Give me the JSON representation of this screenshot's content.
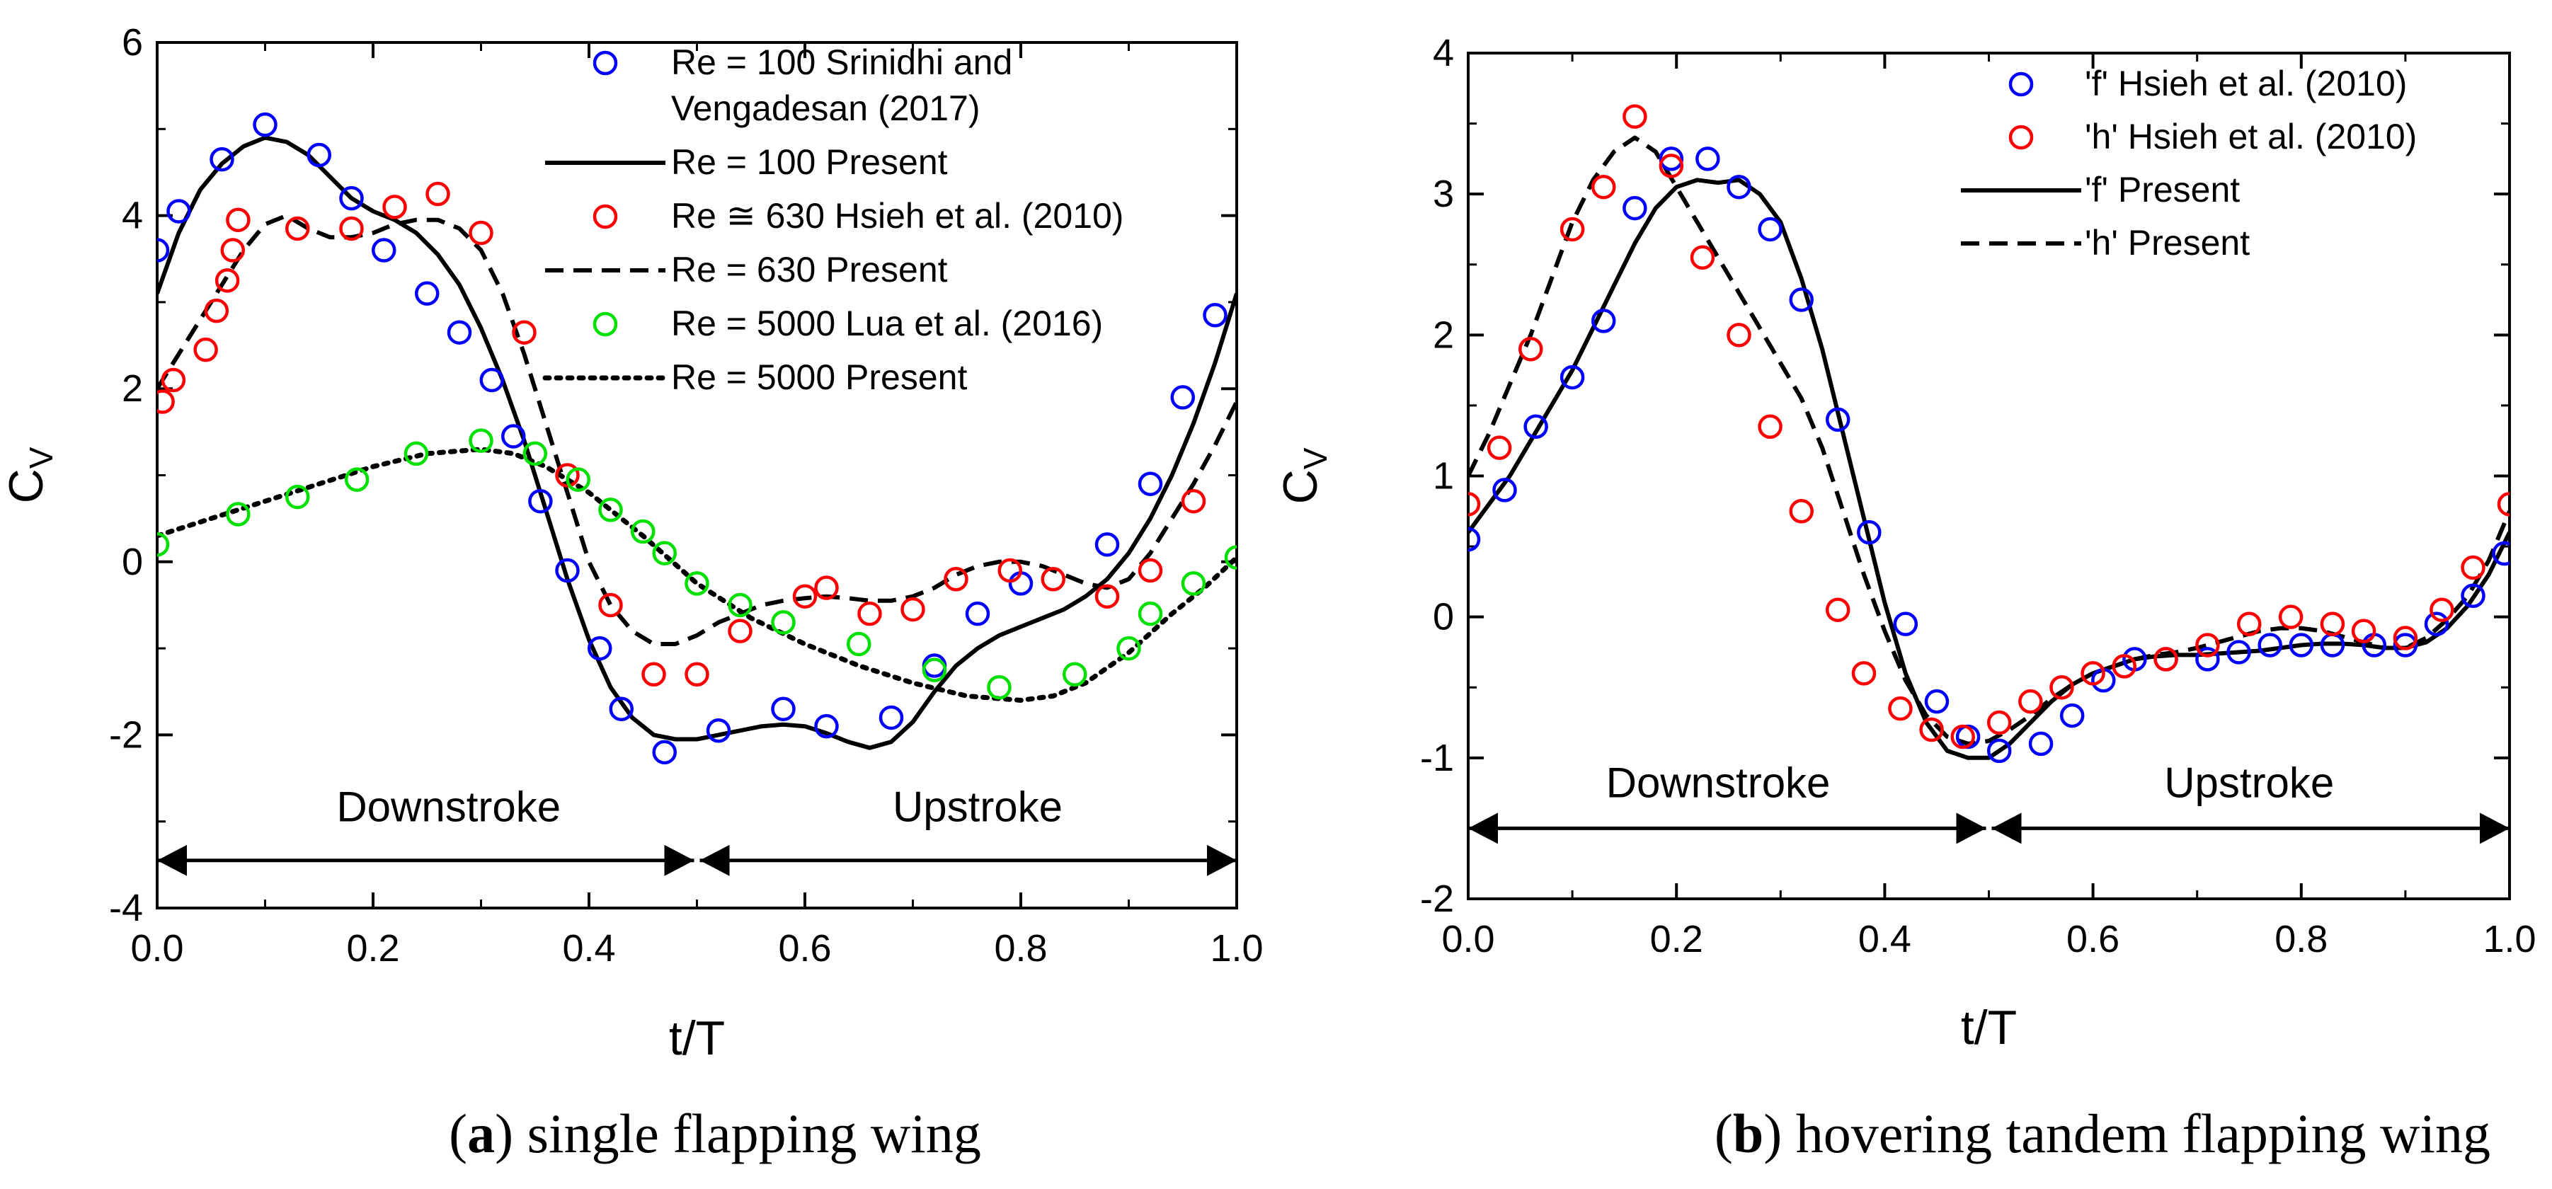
{
  "chart_data": [
    {
      "id": "a",
      "type": "line",
      "caption_letter": "a",
      "caption_text": "single flapping wing",
      "xlabel": "t/T",
      "ylabel": "C",
      "ylabel_sub": "V",
      "xlim": [
        0,
        1
      ],
      "ylim": [
        -4,
        6
      ],
      "x_ticks": [
        0.0,
        0.2,
        0.4,
        0.6,
        0.8,
        1.0
      ],
      "x_tick_labels": [
        "0.0",
        "0.2",
        "0.4",
        "0.6",
        "0.8",
        "1.0"
      ],
      "y_ticks": [
        -4,
        -2,
        0,
        2,
        4,
        6
      ],
      "y_tick_labels": [
        "-4",
        "-2",
        "0",
        "2",
        "4",
        "6"
      ],
      "grid": false,
      "phases": {
        "y": -3.45,
        "split_x": 0.5,
        "label_y": -3.0,
        "labels": [
          {
            "text": "Downstroke",
            "x": 0.27
          },
          {
            "text": "Upstroke",
            "x": 0.76
          }
        ]
      },
      "series": [
        {
          "name": "Re = 100 Srinidhi and",
          "name_line2": "Vengadesan (2017)",
          "kind": "marker",
          "color": "#0000ff",
          "x": [
            0.0,
            0.02,
            0.06,
            0.1,
            0.15,
            0.18,
            0.21,
            0.25,
            0.28,
            0.31,
            0.33,
            0.355,
            0.38,
            0.41,
            0.43,
            0.47,
            0.52,
            0.58,
            0.62,
            0.68,
            0.72,
            0.76,
            0.8,
            0.88,
            0.92,
            0.95,
            0.98
          ],
          "y": [
            3.6,
            4.05,
            4.65,
            5.05,
            4.7,
            4.2,
            3.6,
            3.1,
            2.65,
            2.1,
            1.45,
            0.7,
            -0.1,
            -1.0,
            -1.7,
            -2.2,
            -1.95,
            -1.7,
            -1.9,
            -1.8,
            -1.2,
            -0.6,
            -0.25,
            0.2,
            0.9,
            1.9,
            2.85
          ]
        },
        {
          "name": "Re = 100 Present",
          "kind": "line",
          "dash": "solid",
          "color": "#000000",
          "x": [
            0.0,
            0.02,
            0.04,
            0.06,
            0.08,
            0.1,
            0.12,
            0.14,
            0.16,
            0.18,
            0.2,
            0.22,
            0.24,
            0.26,
            0.28,
            0.3,
            0.32,
            0.34,
            0.36,
            0.38,
            0.4,
            0.42,
            0.44,
            0.46,
            0.48,
            0.5,
            0.52,
            0.54,
            0.56,
            0.58,
            0.6,
            0.62,
            0.64,
            0.66,
            0.68,
            0.7,
            0.72,
            0.74,
            0.76,
            0.78,
            0.8,
            0.82,
            0.84,
            0.86,
            0.88,
            0.9,
            0.92,
            0.94,
            0.96,
            0.98,
            1.0
          ],
          "y": [
            3.1,
            3.8,
            4.3,
            4.6,
            4.8,
            4.9,
            4.85,
            4.7,
            4.45,
            4.2,
            4.05,
            3.95,
            3.8,
            3.55,
            3.2,
            2.7,
            2.1,
            1.4,
            0.6,
            -0.2,
            -0.9,
            -1.45,
            -1.8,
            -2.0,
            -2.05,
            -2.05,
            -2.0,
            -1.95,
            -1.9,
            -1.88,
            -1.9,
            -1.98,
            -2.08,
            -2.15,
            -2.08,
            -1.85,
            -1.5,
            -1.2,
            -1.0,
            -0.85,
            -0.75,
            -0.65,
            -0.55,
            -0.4,
            -0.2,
            0.1,
            0.5,
            1.0,
            1.6,
            2.3,
            3.1
          ]
        },
        {
          "name": "Re ≅ 630 Hsieh et al. (2010)",
          "kind": "marker",
          "color": "#ff0000",
          "x": [
            0.005,
            0.015,
            0.045,
            0.055,
            0.065,
            0.07,
            0.075,
            0.13,
            0.18,
            0.22,
            0.26,
            0.3,
            0.34,
            0.38,
            0.42,
            0.46,
            0.5,
            0.54,
            0.6,
            0.62,
            0.66,
            0.7,
            0.74,
            0.79,
            0.83,
            0.88,
            0.92,
            0.96
          ],
          "y": [
            1.85,
            2.1,
            2.45,
            2.9,
            3.25,
            3.6,
            3.95,
            3.85,
            3.85,
            4.1,
            4.25,
            3.8,
            2.65,
            1.0,
            -0.5,
            -1.3,
            -1.3,
            -0.8,
            -0.4,
            -0.3,
            -0.6,
            -0.55,
            -0.2,
            -0.1,
            -0.2,
            -0.4,
            -0.1,
            0.7
          ]
        },
        {
          "name": "Re = 630 Present",
          "kind": "line",
          "dash": "dashed",
          "color": "#000000",
          "x": [
            0.0,
            0.02,
            0.04,
            0.06,
            0.08,
            0.1,
            0.12,
            0.14,
            0.16,
            0.18,
            0.2,
            0.22,
            0.24,
            0.26,
            0.28,
            0.3,
            0.32,
            0.34,
            0.36,
            0.38,
            0.4,
            0.42,
            0.44,
            0.46,
            0.48,
            0.5,
            0.52,
            0.54,
            0.56,
            0.58,
            0.6,
            0.62,
            0.64,
            0.66,
            0.68,
            0.7,
            0.72,
            0.74,
            0.76,
            0.78,
            0.8,
            0.82,
            0.84,
            0.86,
            0.88,
            0.9,
            0.92,
            0.94,
            0.96,
            0.98,
            1.0
          ],
          "y": [
            2.0,
            2.4,
            2.8,
            3.2,
            3.6,
            3.9,
            4.0,
            3.85,
            3.75,
            3.75,
            3.8,
            3.9,
            3.95,
            3.95,
            3.85,
            3.6,
            3.1,
            2.4,
            1.6,
            0.8,
            0.0,
            -0.5,
            -0.8,
            -0.95,
            -0.95,
            -0.85,
            -0.7,
            -0.6,
            -0.5,
            -0.45,
            -0.42,
            -0.4,
            -0.42,
            -0.45,
            -0.45,
            -0.4,
            -0.3,
            -0.15,
            -0.05,
            0.0,
            0.0,
            -0.05,
            -0.15,
            -0.25,
            -0.3,
            -0.2,
            0.1,
            0.5,
            0.9,
            1.35,
            1.85
          ]
        },
        {
          "name": "Re = 5000 Lua et al. (2016)",
          "kind": "marker",
          "color": "#00e000",
          "x": [
            0.0,
            0.075,
            0.13,
            0.185,
            0.24,
            0.3,
            0.35,
            0.39,
            0.42,
            0.45,
            0.47,
            0.5,
            0.54,
            0.58,
            0.65,
            0.72,
            0.78,
            0.85,
            0.9,
            0.92,
            0.96,
            1.0
          ],
          "y": [
            0.2,
            0.55,
            0.75,
            0.95,
            1.25,
            1.4,
            1.25,
            0.95,
            0.6,
            0.35,
            0.1,
            -0.25,
            -0.5,
            -0.7,
            -0.95,
            -1.25,
            -1.45,
            -1.3,
            -1.0,
            -0.6,
            -0.25,
            0.05
          ]
        },
        {
          "name": "Re = 5000 Present",
          "kind": "line",
          "dash": "dotted",
          "color": "#000000",
          "x": [
            0.0,
            0.05,
            0.1,
            0.15,
            0.2,
            0.25,
            0.3,
            0.33,
            0.36,
            0.4,
            0.45,
            0.5,
            0.55,
            0.6,
            0.65,
            0.7,
            0.75,
            0.8,
            0.83,
            0.86,
            0.9,
            0.94,
            0.97,
            1.0
          ],
          "y": [
            0.3,
            0.5,
            0.7,
            0.9,
            1.1,
            1.25,
            1.3,
            1.25,
            1.1,
            0.8,
            0.3,
            -0.25,
            -0.65,
            -0.95,
            -1.2,
            -1.4,
            -1.55,
            -1.6,
            -1.55,
            -1.4,
            -1.05,
            -0.6,
            -0.3,
            0.05
          ]
        }
      ]
    },
    {
      "id": "b",
      "type": "line",
      "caption_letter": "b",
      "caption_text": "hovering tandem flapping wing",
      "xlabel": "t/T",
      "ylabel": "C",
      "ylabel_sub": "V",
      "xlim": [
        0,
        1
      ],
      "ylim": [
        -2,
        4
      ],
      "x_ticks": [
        0.0,
        0.2,
        0.4,
        0.6,
        0.8,
        1.0
      ],
      "x_tick_labels": [
        "0.0",
        "0.2",
        "0.4",
        "0.6",
        "0.8",
        "1.0"
      ],
      "y_ticks": [
        -2,
        -1,
        0,
        1,
        2,
        3,
        4
      ],
      "y_tick_labels": [
        "-2",
        "-1",
        "0",
        "1",
        "2",
        "3",
        "4"
      ],
      "grid": false,
      "phases": {
        "y": -1.5,
        "split_x": 0.5,
        "label_y": -1.28,
        "labels": [
          {
            "text": "Downstroke",
            "x": 0.24
          },
          {
            "text": "Upstroke",
            "x": 0.75
          }
        ]
      },
      "series": [
        {
          "name": "'f' Hsieh et al. (2010)",
          "kind": "marker",
          "color": "#0000ff",
          "x": [
            0.0,
            0.035,
            0.065,
            0.1,
            0.13,
            0.16,
            0.195,
            0.23,
            0.26,
            0.29,
            0.32,
            0.355,
            0.385,
            0.42,
            0.45,
            0.48,
            0.51,
            0.55,
            0.58,
            0.61,
            0.64,
            0.67,
            0.71,
            0.74,
            0.77,
            0.8,
            0.83,
            0.87,
            0.9,
            0.93,
            0.965,
            0.995
          ],
          "y": [
            0.55,
            0.9,
            1.35,
            1.7,
            2.1,
            2.9,
            3.25,
            3.25,
            3.05,
            2.75,
            2.25,
            1.4,
            0.6,
            -0.05,
            -0.6,
            -0.85,
            -0.95,
            -0.9,
            -0.7,
            -0.45,
            -0.3,
            -0.3,
            -0.3,
            -0.25,
            -0.2,
            -0.2,
            -0.2,
            -0.2,
            -0.2,
            -0.05,
            0.15,
            0.45
          ]
        },
        {
          "name": "'h' Hsieh et al. (2010)",
          "kind": "marker",
          "color": "#ff0000",
          "x": [
            0.0,
            0.03,
            0.06,
            0.1,
            0.13,
            0.16,
            0.195,
            0.225,
            0.26,
            0.29,
            0.32,
            0.355,
            0.38,
            0.415,
            0.445,
            0.475,
            0.51,
            0.54,
            0.57,
            0.6,
            0.63,
            0.67,
            0.71,
            0.75,
            0.79,
            0.83,
            0.86,
            0.9,
            0.935,
            0.965,
            1.0
          ],
          "y": [
            0.8,
            1.2,
            1.9,
            2.75,
            3.05,
            3.55,
            3.2,
            2.55,
            2.0,
            1.35,
            0.75,
            0.05,
            -0.4,
            -0.65,
            -0.8,
            -0.85,
            -0.75,
            -0.6,
            -0.5,
            -0.4,
            -0.35,
            -0.3,
            -0.2,
            -0.05,
            0.0,
            -0.05,
            -0.1,
            -0.15,
            0.05,
            0.35,
            0.8
          ]
        },
        {
          "name": "'f' Present",
          "kind": "line",
          "dash": "solid",
          "color": "#000000",
          "x": [
            0.0,
            0.02,
            0.04,
            0.06,
            0.08,
            0.1,
            0.12,
            0.14,
            0.16,
            0.18,
            0.2,
            0.22,
            0.24,
            0.26,
            0.28,
            0.3,
            0.32,
            0.34,
            0.36,
            0.38,
            0.4,
            0.42,
            0.44,
            0.46,
            0.48,
            0.5,
            0.52,
            0.54,
            0.56,
            0.58,
            0.6,
            0.62,
            0.64,
            0.66,
            0.68,
            0.7,
            0.72,
            0.74,
            0.76,
            0.78,
            0.8,
            0.82,
            0.84,
            0.86,
            0.88,
            0.9,
            0.92,
            0.94,
            0.96,
            0.98,
            1.0
          ],
          "y": [
            0.6,
            0.8,
            1.0,
            1.25,
            1.5,
            1.75,
            2.05,
            2.35,
            2.65,
            2.9,
            3.05,
            3.1,
            3.08,
            3.1,
            3.0,
            2.8,
            2.4,
            1.9,
            1.3,
            0.7,
            0.1,
            -0.4,
            -0.75,
            -0.95,
            -1.0,
            -1.0,
            -0.9,
            -0.75,
            -0.6,
            -0.48,
            -0.4,
            -0.35,
            -0.3,
            -0.28,
            -0.27,
            -0.27,
            -0.26,
            -0.25,
            -0.24,
            -0.22,
            -0.2,
            -0.19,
            -0.19,
            -0.2,
            -0.22,
            -0.22,
            -0.18,
            -0.08,
            0.08,
            0.3,
            0.6
          ]
        },
        {
          "name": "'h' Present",
          "kind": "line",
          "dash": "dashed",
          "color": "#000000",
          "x": [
            0.0,
            0.02,
            0.04,
            0.06,
            0.08,
            0.1,
            0.12,
            0.14,
            0.16,
            0.18,
            0.2,
            0.22,
            0.24,
            0.26,
            0.28,
            0.3,
            0.32,
            0.34,
            0.36,
            0.38,
            0.4,
            0.42,
            0.44,
            0.46,
            0.48,
            0.5,
            0.52,
            0.54,
            0.56,
            0.58,
            0.6,
            0.62,
            0.64,
            0.66,
            0.68,
            0.7,
            0.72,
            0.74,
            0.76,
            0.78,
            0.8,
            0.82,
            0.84,
            0.86,
            0.88,
            0.9,
            0.92,
            0.94,
            0.96,
            0.98,
            1.0
          ],
          "y": [
            1.0,
            1.3,
            1.65,
            2.0,
            2.4,
            2.8,
            3.1,
            3.3,
            3.4,
            3.3,
            3.05,
            2.8,
            2.55,
            2.3,
            2.05,
            1.8,
            1.55,
            1.2,
            0.75,
            0.3,
            -0.1,
            -0.45,
            -0.7,
            -0.85,
            -0.9,
            -0.88,
            -0.8,
            -0.7,
            -0.58,
            -0.48,
            -0.4,
            -0.35,
            -0.3,
            -0.27,
            -0.25,
            -0.22,
            -0.18,
            -0.14,
            -0.1,
            -0.08,
            -0.08,
            -0.1,
            -0.14,
            -0.18,
            -0.22,
            -0.22,
            -0.15,
            -0.02,
            0.15,
            0.4,
            0.75
          ]
        }
      ]
    }
  ]
}
